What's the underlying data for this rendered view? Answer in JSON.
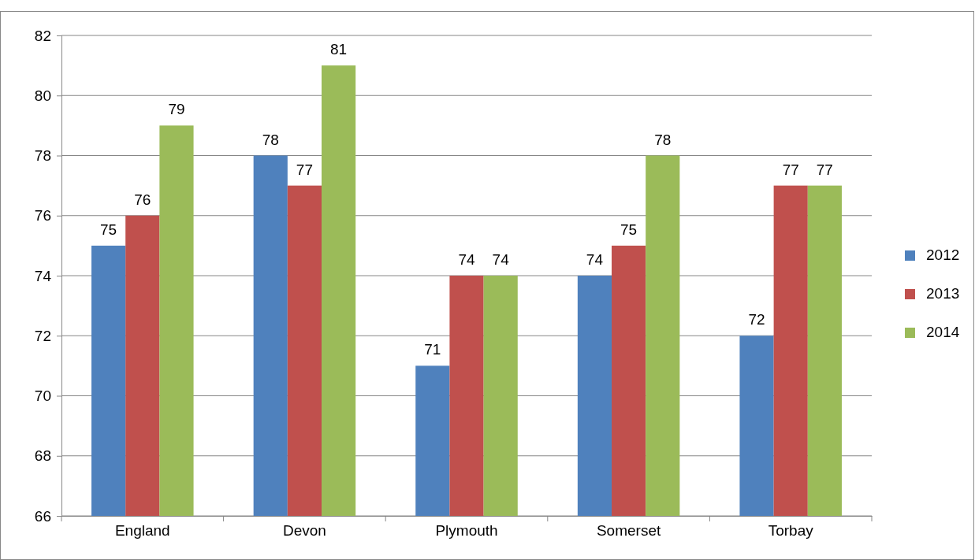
{
  "chart_data": {
    "type": "bar",
    "categories": [
      "England",
      "Devon",
      "Plymouth",
      "Somerset",
      "Torbay"
    ],
    "series": [
      {
        "name": "2012",
        "color": "#4f81bd",
        "values": [
          75,
          78,
          71,
          74,
          72
        ]
      },
      {
        "name": "2013",
        "color": "#c0504d",
        "values": [
          76,
          77,
          74,
          75,
          77
        ]
      },
      {
        "name": "2014",
        "color": "#9bbb59",
        "values": [
          79,
          81,
          74,
          78,
          77
        ]
      }
    ],
    "ylim": [
      66,
      82
    ],
    "yticks": [
      66,
      68,
      70,
      72,
      74,
      76,
      78,
      80,
      82
    ],
    "grid": "y",
    "legend": "right",
    "data_labels": true
  }
}
